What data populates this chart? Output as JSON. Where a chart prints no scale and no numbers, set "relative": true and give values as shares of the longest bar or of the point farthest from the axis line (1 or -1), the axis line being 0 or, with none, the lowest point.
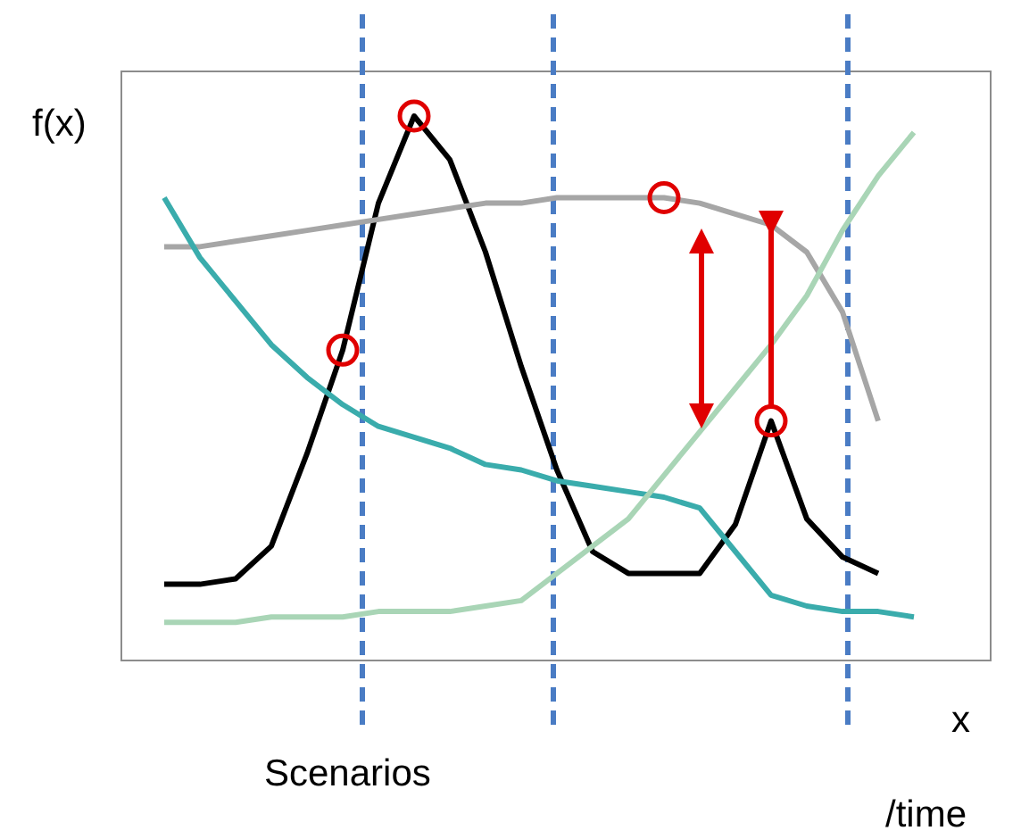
{
  "chart_data": {
    "type": "line",
    "relative": true,
    "ylabel": "f(x)",
    "xlabel": "x",
    "annotations": [
      {
        "text": "Scenarios"
      },
      {
        "text": "/time"
      }
    ],
    "categories": [
      null,
      null,
      null,
      null,
      null,
      null,
      null,
      null,
      null,
      null,
      null,
      null,
      null,
      null,
      null,
      null,
      null,
      null,
      null,
      null,
      null,
      null,
      null
    ],
    "series": [
      {
        "color": "#000000",
        "values": [
          null,
          0.14,
          0.14,
          0.15,
          0.21,
          0.38,
          0.57,
          0.84,
          1.0,
          0.92,
          0.75,
          0.54,
          0.35,
          0.2,
          0.16,
          0.16,
          0.16,
          0.25,
          0.44,
          0.26,
          0.19,
          0.16,
          null
        ]
      },
      {
        "color": "#a6a6a6",
        "values": [
          null,
          0.76,
          0.76,
          0.77,
          0.78,
          0.79,
          0.8,
          0.81,
          0.82,
          0.83,
          0.84,
          0.84,
          0.85,
          0.85,
          0.85,
          0.85,
          0.84,
          0.82,
          0.8,
          0.75,
          0.64,
          0.44,
          null
        ]
      },
      {
        "color": "#3aacac",
        "values": [
          null,
          0.85,
          0.74,
          0.66,
          0.58,
          0.52,
          0.47,
          0.43,
          0.41,
          0.39,
          0.36,
          0.35,
          0.33,
          0.32,
          0.31,
          0.3,
          0.28,
          0.2,
          0.12,
          0.1,
          0.09,
          0.09,
          0.08
        ]
      },
      {
        "color": "#a9d5b6",
        "values": [
          null,
          0.07,
          0.07,
          0.07,
          0.08,
          0.08,
          0.08,
          0.09,
          0.09,
          0.09,
          0.1,
          0.11,
          0.16,
          0.21,
          0.26,
          0.34,
          0.42,
          0.5,
          0.58,
          0.67,
          0.79,
          0.89,
          0.97
        ]
      }
    ]
  }
}
